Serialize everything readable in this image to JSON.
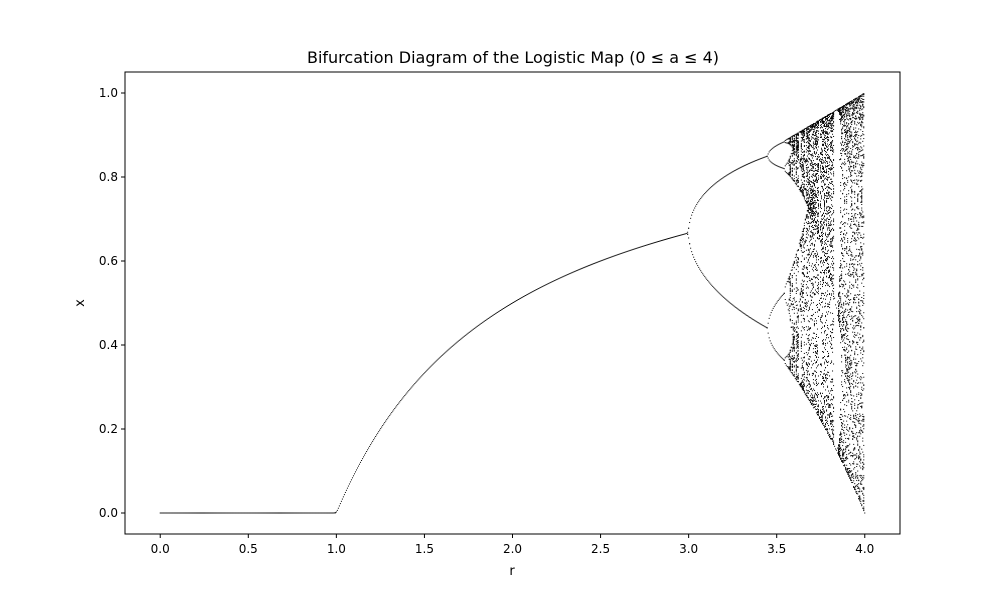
{
  "chart_data": {
    "type": "scatter",
    "title": "Bifurcation Diagram of the Logistic Map (0 ≤ a ≤ 4)",
    "xlabel": "r",
    "ylabel": "x",
    "xlim": [
      -0.2,
      4.2
    ],
    "ylim": [
      -0.05,
      1.05
    ],
    "x_ticks": [
      {
        "value": 0.0,
        "label": "0.0"
      },
      {
        "value": 0.5,
        "label": "0.5"
      },
      {
        "value": 1.0,
        "label": "1.0"
      },
      {
        "value": 1.5,
        "label": "1.5"
      },
      {
        "value": 2.0,
        "label": "2.0"
      },
      {
        "value": 2.5,
        "label": "2.5"
      },
      {
        "value": 3.0,
        "label": "3.0"
      },
      {
        "value": 3.5,
        "label": "3.5"
      },
      {
        "value": 4.0,
        "label": "4.0"
      }
    ],
    "y_ticks": [
      {
        "value": 0.0,
        "label": "0.0"
      },
      {
        "value": 0.2,
        "label": "0.2"
      },
      {
        "value": 0.4,
        "label": "0.4"
      },
      {
        "value": 0.6,
        "label": "0.6"
      },
      {
        "value": 0.8,
        "label": "0.8"
      },
      {
        "value": 1.0,
        "label": "1.0"
      }
    ],
    "r_range": [
      0.0,
      4.0
    ],
    "grid": false,
    "legend": false,
    "marker_color": "#000000"
  }
}
